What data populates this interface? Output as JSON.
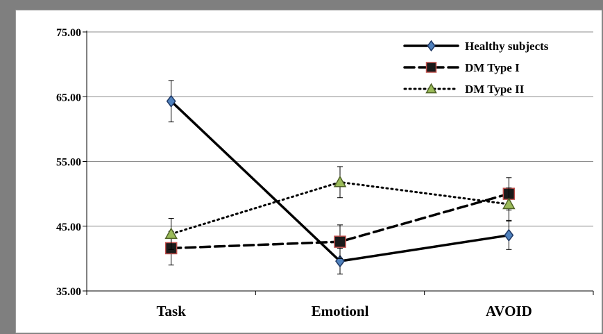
{
  "chart_data": {
    "type": "line",
    "title": "",
    "xlabel": "",
    "ylabel": "",
    "categories": [
      "Task",
      "Emotionl",
      "AVOID"
    ],
    "ylim": [
      35,
      75
    ],
    "yticks": [
      "35.00",
      "45.00",
      "55.00",
      "65.00",
      "75.00"
    ],
    "grid": true,
    "legend_position": "top-right",
    "series": [
      {
        "name": "Healthy subjects",
        "values": [
          64.3,
          39.6,
          43.6
        ],
        "errors": [
          3.2,
          2.0,
          2.2
        ],
        "marker": "diamond",
        "line_style": "solid",
        "line_color": "#000000",
        "marker_fill": "#4f81bd",
        "marker_edge": "#1f3864"
      },
      {
        "name": "DM Type I",
        "values": [
          41.6,
          42.6,
          50.0
        ],
        "errors": [
          2.6,
          2.6,
          2.5
        ],
        "marker": "square",
        "line_style": "dashed",
        "line_color": "#000000",
        "marker_fill": "#1a1a1a",
        "marker_edge": "#c0504d"
      },
      {
        "name": "DM Type II",
        "values": [
          43.8,
          51.8,
          48.4
        ],
        "errors": [
          2.4,
          2.4,
          2.5
        ],
        "marker": "triangle",
        "line_style": "dotted",
        "line_color": "#000000",
        "marker_fill": "#9bbb59",
        "marker_edge": "#4f6228"
      }
    ]
  }
}
